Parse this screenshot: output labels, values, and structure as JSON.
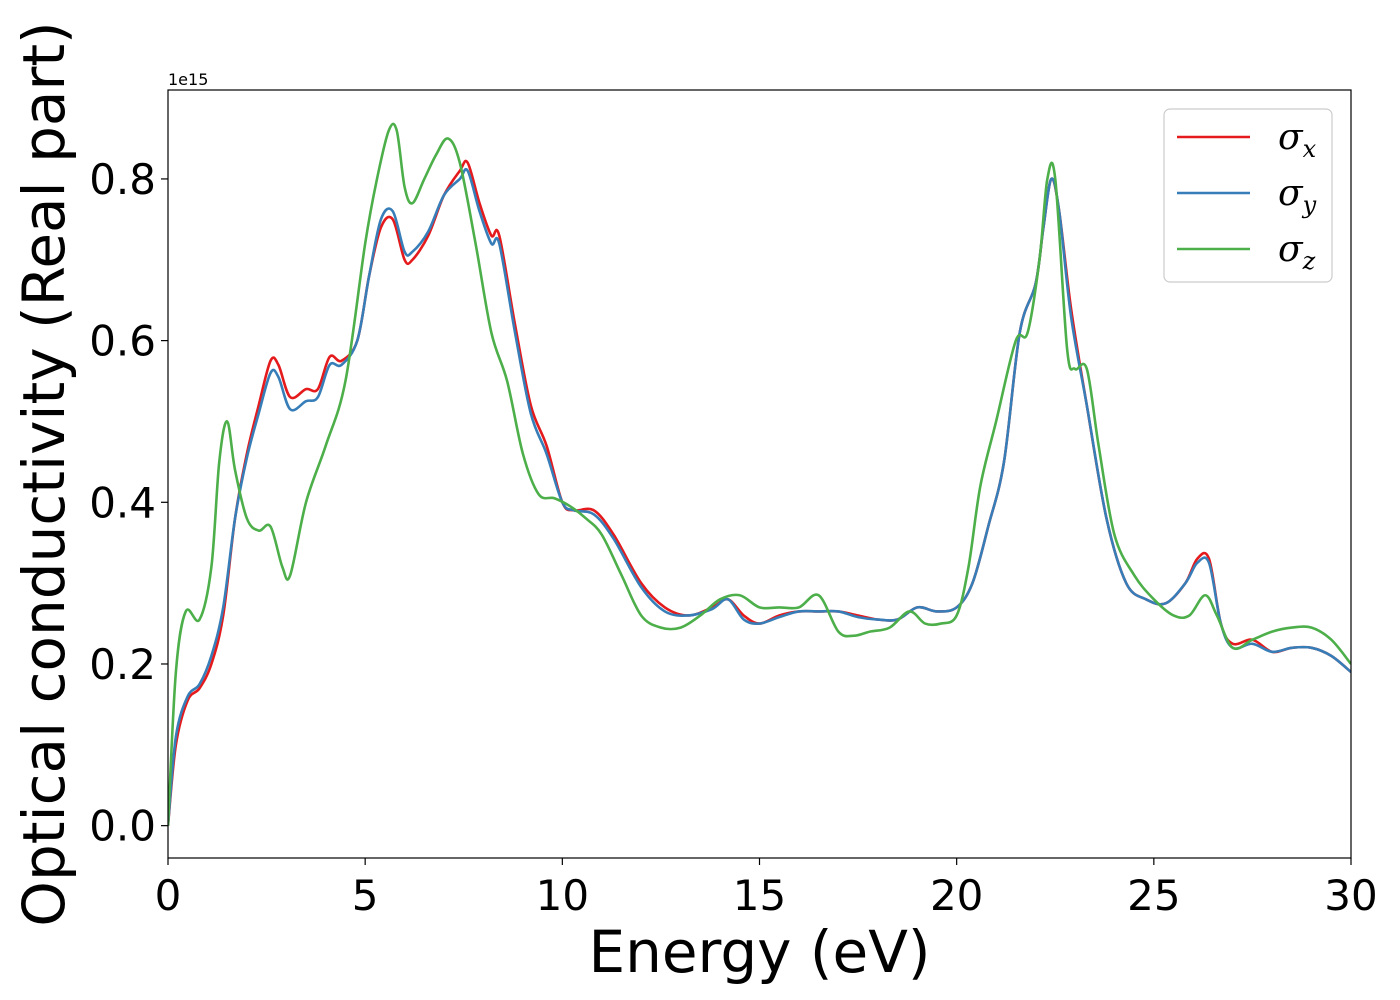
{
  "chart_data": {
    "type": "line",
    "title": "",
    "xlabel": "Energy (eV)",
    "ylabel": "Optical conductivity (Real part)",
    "y_offset_text": "1e15",
    "xlim": [
      0,
      30
    ],
    "ylim": [
      -0.04,
      0.91
    ],
    "xticks": [
      0,
      5,
      10,
      15,
      20,
      25,
      30
    ],
    "xtick_labels": [
      "0",
      "5",
      "10",
      "15",
      "20",
      "25",
      "30"
    ],
    "yticks": [
      0.0,
      0.2,
      0.4,
      0.6,
      0.8
    ],
    "ytick_labels": [
      "0.0",
      "0.2",
      "0.4",
      "0.6",
      "0.8"
    ],
    "grid": false,
    "legend_position": "top-right",
    "series": [
      {
        "name": "σx",
        "symbol": "σ",
        "subscript": "x",
        "color": "#e41a1c",
        "x": [
          0,
          0.2,
          0.5,
          0.8,
          1.1,
          1.4,
          1.7,
          2.0,
          2.3,
          2.6,
          2.8,
          3.1,
          3.5,
          3.8,
          4.1,
          4.4,
          4.8,
          5.1,
          5.4,
          5.7,
          6.0,
          6.2,
          6.6,
          7.0,
          7.4,
          7.6,
          7.9,
          8.2,
          8.4,
          8.8,
          9.2,
          9.6,
          10.0,
          10.3,
          10.8,
          11.3,
          12.0,
          12.6,
          13.2,
          13.8,
          14.2,
          14.6,
          15.0,
          15.5,
          16.0,
          16.5,
          17.0,
          17.5,
          18.0,
          18.5,
          19.0,
          19.5,
          20.0,
          20.4,
          20.8,
          21.2,
          21.6,
          22.0,
          22.2,
          22.4,
          22.6,
          22.9,
          23.3,
          23.8,
          24.3,
          24.8,
          25.3,
          25.8,
          26.1,
          26.4,
          26.7,
          27.0,
          27.5,
          28.0,
          28.5,
          29.0,
          29.5,
          30.0
        ],
        "y": [
          0.0,
          0.1,
          0.155,
          0.17,
          0.2,
          0.26,
          0.38,
          0.46,
          0.52,
          0.575,
          0.57,
          0.53,
          0.54,
          0.54,
          0.58,
          0.575,
          0.6,
          0.68,
          0.74,
          0.75,
          0.7,
          0.7,
          0.73,
          0.78,
          0.81,
          0.82,
          0.77,
          0.73,
          0.73,
          0.62,
          0.52,
          0.47,
          0.4,
          0.39,
          0.39,
          0.36,
          0.3,
          0.27,
          0.26,
          0.27,
          0.28,
          0.26,
          0.25,
          0.26,
          0.265,
          0.265,
          0.265,
          0.26,
          0.255,
          0.255,
          0.27,
          0.265,
          0.27,
          0.3,
          0.37,
          0.45,
          0.61,
          0.67,
          0.74,
          0.8,
          0.76,
          0.64,
          0.52,
          0.38,
          0.3,
          0.28,
          0.275,
          0.3,
          0.33,
          0.33,
          0.25,
          0.225,
          0.23,
          0.215,
          0.22,
          0.22,
          0.21,
          0.19
        ]
      },
      {
        "name": "σy",
        "symbol": "σ",
        "subscript": "y",
        "color": "#377eb8",
        "x": [
          0,
          0.2,
          0.5,
          0.8,
          1.1,
          1.4,
          1.7,
          2.0,
          2.3,
          2.6,
          2.8,
          3.1,
          3.5,
          3.8,
          4.1,
          4.4,
          4.8,
          5.1,
          5.4,
          5.7,
          6.0,
          6.2,
          6.6,
          7.0,
          7.4,
          7.6,
          7.9,
          8.2,
          8.4,
          8.8,
          9.2,
          9.6,
          10.0,
          10.3,
          10.8,
          11.3,
          12.0,
          12.6,
          13.2,
          13.8,
          14.2,
          14.6,
          15.0,
          15.5,
          16.0,
          16.5,
          17.0,
          17.5,
          18.0,
          18.5,
          19.0,
          19.5,
          20.0,
          20.4,
          20.8,
          21.2,
          21.6,
          22.0,
          22.2,
          22.4,
          22.6,
          22.9,
          23.3,
          23.8,
          24.3,
          24.8,
          25.3,
          25.8,
          26.1,
          26.4,
          26.7,
          27.0,
          27.5,
          28.0,
          28.5,
          29.0,
          29.5,
          30.0
        ],
        "y": [
          0.0,
          0.11,
          0.16,
          0.175,
          0.21,
          0.27,
          0.38,
          0.455,
          0.51,
          0.56,
          0.555,
          0.515,
          0.525,
          0.53,
          0.57,
          0.57,
          0.6,
          0.68,
          0.75,
          0.76,
          0.71,
          0.71,
          0.735,
          0.78,
          0.8,
          0.81,
          0.76,
          0.72,
          0.72,
          0.61,
          0.51,
          0.46,
          0.4,
          0.39,
          0.385,
          0.355,
          0.295,
          0.265,
          0.26,
          0.268,
          0.28,
          0.255,
          0.25,
          0.258,
          0.265,
          0.265,
          0.265,
          0.258,
          0.255,
          0.255,
          0.27,
          0.265,
          0.27,
          0.3,
          0.37,
          0.45,
          0.61,
          0.67,
          0.74,
          0.8,
          0.76,
          0.63,
          0.52,
          0.38,
          0.3,
          0.28,
          0.275,
          0.3,
          0.325,
          0.325,
          0.25,
          0.22,
          0.225,
          0.215,
          0.22,
          0.22,
          0.21,
          0.19
        ]
      },
      {
        "name": "σz",
        "symbol": "σ",
        "subscript": "z",
        "color": "#4daf4a",
        "x": [
          0,
          0.2,
          0.45,
          0.8,
          1.1,
          1.3,
          1.5,
          1.7,
          2.0,
          2.3,
          2.6,
          2.9,
          3.1,
          3.5,
          4.0,
          4.5,
          5.0,
          5.3,
          5.6,
          5.8,
          6.0,
          6.2,
          6.5,
          6.8,
          7.1,
          7.4,
          7.8,
          8.2,
          8.6,
          9.0,
          9.4,
          9.8,
          10.2,
          10.6,
          11.0,
          11.5,
          12.0,
          12.5,
          13.0,
          13.5,
          14.0,
          14.5,
          15.0,
          15.5,
          16.0,
          16.5,
          17.0,
          17.4,
          17.8,
          18.3,
          18.8,
          19.2,
          19.6,
          20.0,
          20.3,
          20.6,
          21.0,
          21.5,
          21.8,
          22.1,
          22.3,
          22.5,
          22.8,
          23.0,
          23.3,
          23.6,
          24.0,
          24.5,
          25.0,
          25.5,
          25.9,
          26.3,
          26.6,
          27.0,
          27.5,
          28.0,
          28.5,
          29.0,
          29.5,
          30.0
        ],
        "y": [
          0.0,
          0.19,
          0.265,
          0.255,
          0.32,
          0.45,
          0.5,
          0.44,
          0.38,
          0.365,
          0.37,
          0.32,
          0.31,
          0.4,
          0.47,
          0.55,
          0.72,
          0.8,
          0.86,
          0.86,
          0.79,
          0.77,
          0.8,
          0.83,
          0.85,
          0.82,
          0.72,
          0.61,
          0.55,
          0.46,
          0.41,
          0.405,
          0.395,
          0.38,
          0.36,
          0.31,
          0.26,
          0.245,
          0.245,
          0.26,
          0.28,
          0.285,
          0.27,
          0.27,
          0.27,
          0.285,
          0.24,
          0.235,
          0.24,
          0.245,
          0.265,
          0.25,
          0.25,
          0.26,
          0.32,
          0.42,
          0.5,
          0.6,
          0.61,
          0.7,
          0.8,
          0.8,
          0.59,
          0.565,
          0.565,
          0.47,
          0.36,
          0.31,
          0.28,
          0.26,
          0.26,
          0.285,
          0.26,
          0.22,
          0.23,
          0.24,
          0.245,
          0.245,
          0.23,
          0.2
        ]
      }
    ]
  }
}
